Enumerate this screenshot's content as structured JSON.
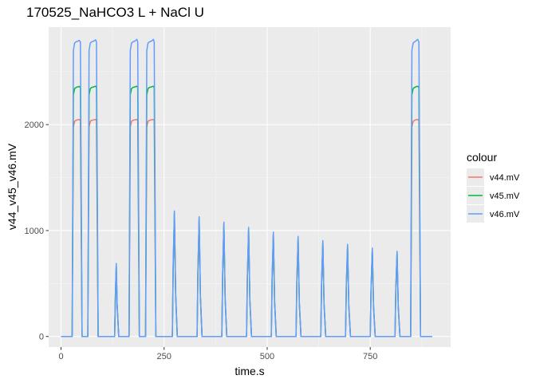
{
  "chart_data": {
    "type": "line",
    "title": "170525_NaHCO3 L + NaCl U",
    "xlabel": "time.s",
    "ylabel": "v44_v45_v46.mV",
    "xlim": [
      -30,
      945
    ],
    "ylim": [
      -100,
      2920
    ],
    "x_ticks": [
      0,
      250,
      500,
      750
    ],
    "y_ticks": [
      0,
      1000,
      2000
    ],
    "x_tick_labels": [
      "0",
      "250",
      "500",
      "750"
    ],
    "y_tick_labels": [
      "0",
      "1000",
      "2000"
    ],
    "grid": true,
    "legend": {
      "title": "colour",
      "placement": "right"
    },
    "colors": {
      "panel_bg": "#EBEBEB",
      "grid_major": "#FFFFFF",
      "grid_minor": "#F5F5F5",
      "axis_text": "#4D4D4D"
    },
    "series": [
      {
        "name": "v44.mV",
        "color": "#F8766D",
        "plateau": 2045,
        "x": [
          0,
          27,
          30,
          33,
          36,
          40,
          44,
          47,
          51,
          65,
          68,
          71,
          74,
          80,
          84,
          86,
          90,
          130,
          132,
          134,
          136,
          140,
          165,
          168,
          171,
          174,
          180,
          184,
          186,
          190,
          205,
          208,
          211,
          214,
          220,
          224,
          226,
          230,
          270,
          272,
          275,
          278,
          282,
          330,
          332,
          335,
          338,
          342,
          390,
          392,
          395,
          398,
          402,
          450,
          452,
          455,
          458,
          462,
          510,
          512,
          515,
          518,
          522,
          570,
          572,
          575,
          578,
          582,
          630,
          632,
          635,
          638,
          642,
          690,
          692,
          695,
          698,
          702,
          750,
          752,
          755,
          758,
          762,
          810,
          812,
          815,
          818,
          822,
          848,
          851,
          854,
          857,
          861,
          865,
          868,
          872,
          900
        ],
        "y": [
          0,
          0,
          1980,
          2030,
          2040,
          2045,
          2048,
          2040,
          0,
          0,
          1980,
          2030,
          2040,
          2046,
          2048,
          2040,
          0,
          0,
          400,
          660,
          300,
          0,
          0,
          1980,
          2030,
          2040,
          2046,
          2048,
          2040,
          0,
          0,
          1980,
          2030,
          2040,
          2046,
          2048,
          2040,
          0,
          0,
          650,
          1160,
          400,
          0,
          0,
          600,
          1110,
          380,
          0,
          0,
          580,
          1060,
          360,
          0,
          0,
          560,
          1010,
          340,
          0,
          0,
          540,
          965,
          330,
          0,
          0,
          520,
          925,
          310,
          0,
          0,
          500,
          885,
          300,
          0,
          0,
          480,
          850,
          290,
          0,
          0,
          460,
          815,
          280,
          0,
          0,
          440,
          785,
          270,
          0,
          0,
          1980,
          2030,
          2040,
          2046,
          2048,
          2040,
          0,
          0
        ]
      },
      {
        "name": "v45.mV",
        "color": "#00BA38",
        "plateau": 2355,
        "x": [
          0,
          27,
          30,
          33,
          36,
          40,
          44,
          47,
          51,
          65,
          68,
          71,
          74,
          80,
          84,
          86,
          90,
          130,
          132,
          134,
          136,
          140,
          165,
          168,
          171,
          174,
          180,
          184,
          186,
          190,
          205,
          208,
          211,
          214,
          220,
          224,
          226,
          230,
          270,
          272,
          275,
          278,
          282,
          330,
          332,
          335,
          338,
          342,
          390,
          392,
          395,
          398,
          402,
          450,
          452,
          455,
          458,
          462,
          510,
          512,
          515,
          518,
          522,
          570,
          572,
          575,
          578,
          582,
          630,
          632,
          635,
          638,
          642,
          690,
          692,
          695,
          698,
          702,
          750,
          752,
          755,
          758,
          762,
          810,
          812,
          815,
          818,
          822,
          848,
          851,
          854,
          857,
          861,
          865,
          868,
          872,
          900
        ],
        "y": [
          0,
          0,
          2280,
          2340,
          2350,
          2356,
          2360,
          2350,
          0,
          0,
          2280,
          2340,
          2350,
          2357,
          2362,
          2350,
          0,
          0,
          400,
          670,
          300,
          0,
          0,
          2280,
          2340,
          2350,
          2357,
          2362,
          2350,
          0,
          0,
          2280,
          2340,
          2350,
          2357,
          2362,
          2350,
          0,
          0,
          650,
          1170,
          400,
          0,
          0,
          600,
          1120,
          380,
          0,
          0,
          580,
          1065,
          360,
          0,
          0,
          560,
          1020,
          340,
          0,
          0,
          540,
          970,
          330,
          0,
          0,
          520,
          930,
          310,
          0,
          0,
          500,
          890,
          300,
          0,
          0,
          480,
          855,
          290,
          0,
          0,
          460,
          820,
          280,
          0,
          0,
          440,
          790,
          270,
          0,
          0,
          2280,
          2340,
          2350,
          2357,
          2362,
          2350,
          0,
          0
        ]
      },
      {
        "name": "v46.mV",
        "color": "#619CFF",
        "plateau": 2790,
        "x": [
          0,
          27,
          30,
          33,
          36,
          40,
          44,
          47,
          51,
          65,
          68,
          71,
          74,
          80,
          84,
          86,
          90,
          130,
          132,
          134,
          136,
          140,
          165,
          168,
          171,
          174,
          180,
          184,
          186,
          190,
          205,
          208,
          211,
          214,
          220,
          224,
          226,
          230,
          270,
          272,
          275,
          278,
          282,
          330,
          332,
          335,
          338,
          342,
          390,
          392,
          395,
          398,
          402,
          450,
          452,
          455,
          458,
          462,
          510,
          512,
          515,
          518,
          522,
          570,
          572,
          575,
          578,
          582,
          630,
          632,
          635,
          638,
          642,
          690,
          692,
          695,
          698,
          702,
          750,
          752,
          755,
          758,
          762,
          810,
          812,
          815,
          818,
          822,
          848,
          851,
          854,
          857,
          861,
          865,
          868,
          872,
          900
        ],
        "y": [
          0,
          0,
          2700,
          2770,
          2780,
          2786,
          2795,
          2780,
          0,
          0,
          2700,
          2770,
          2780,
          2790,
          2800,
          2780,
          0,
          0,
          420,
          690,
          310,
          0,
          0,
          2700,
          2770,
          2780,
          2790,
          2805,
          2780,
          0,
          0,
          2700,
          2770,
          2780,
          2790,
          2805,
          2780,
          0,
          0,
          670,
          1185,
          410,
          0,
          0,
          620,
          1130,
          390,
          0,
          0,
          600,
          1080,
          370,
          0,
          0,
          580,
          1030,
          350,
          0,
          0,
          560,
          985,
          340,
          0,
          0,
          540,
          945,
          320,
          0,
          0,
          520,
          905,
          310,
          0,
          0,
          500,
          870,
          300,
          0,
          0,
          480,
          835,
          290,
          0,
          0,
          460,
          805,
          280,
          0,
          0,
          2700,
          2770,
          2780,
          2790,
          2805,
          2780,
          0,
          0
        ]
      }
    ]
  }
}
